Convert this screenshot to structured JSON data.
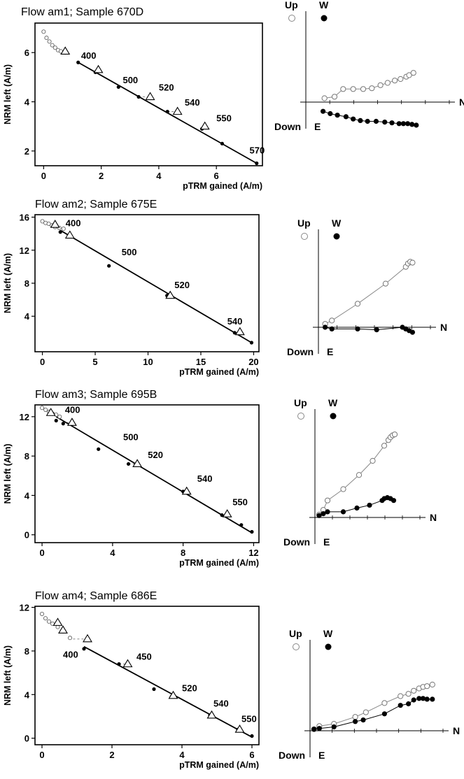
{
  "chart_data": [
    {
      "type": "scatter",
      "title": "Flow am1; Sample 670D",
      "xlabel": "pTRM gained (A/m)",
      "ylabel": "NRM left (A/m)",
      "xlim": [
        -0.3,
        7.6
      ],
      "ylim": [
        1.4,
        7.2
      ],
      "xticks": [
        "0",
        "2",
        "4",
        "6"
      ],
      "yticks": [
        "2",
        "4",
        "6"
      ],
      "points_low": [
        [
          0,
          6.85
        ],
        [
          0.1,
          6.6
        ],
        [
          0.2,
          6.45
        ],
        [
          0.3,
          6.3
        ],
        [
          0.4,
          6.2
        ],
        [
          0.5,
          6.1
        ],
        [
          0.6,
          6.05
        ],
        [
          0.75,
          6.0
        ]
      ],
      "points_fit": [
        [
          1.2,
          5.6
        ],
        [
          1.8,
          5.2
        ],
        [
          2.6,
          4.6
        ],
        [
          3.3,
          4.2
        ],
        [
          4.3,
          3.6
        ],
        [
          5.5,
          2.9
        ],
        [
          6.2,
          2.3
        ],
        [
          7.4,
          1.5
        ]
      ],
      "checks": [
        [
          0.75,
          6.05
        ],
        [
          1.9,
          5.3
        ],
        [
          3.7,
          4.2
        ],
        [
          4.65,
          3.6
        ],
        [
          5.6,
          3.0
        ]
      ],
      "fit_line": [
        [
          1.2,
          5.6
        ],
        [
          7.4,
          1.5
        ]
      ],
      "temps": [
        {
          "label": "400",
          "x": 1.3,
          "y": 5.75
        },
        {
          "label": "500",
          "x": 2.75,
          "y": 4.75
        },
        {
          "label": "520",
          "x": 4.0,
          "y": 4.45
        },
        {
          "label": "540",
          "x": 4.9,
          "y": 3.85
        },
        {
          "label": "550",
          "x": 6.0,
          "y": 3.2
        },
        {
          "label": "570",
          "x": 7.15,
          "y": 1.9
        }
      ],
      "zijderveld": {
        "labels": {
          "up": "Up",
          "w": "W",
          "down": "Down",
          "e": "E",
          "n": "N"
        },
        "horizontal": [
          [
            0.12,
            -0.12
          ],
          [
            0.17,
            -0.15
          ],
          [
            0.22,
            -0.17
          ],
          [
            0.28,
            -0.19
          ],
          [
            0.33,
            -0.22
          ],
          [
            0.38,
            -0.24
          ],
          [
            0.43,
            -0.25
          ],
          [
            0.49,
            -0.25
          ],
          [
            0.55,
            -0.26
          ],
          [
            0.6,
            -0.27
          ],
          [
            0.65,
            -0.28
          ],
          [
            0.68,
            -0.28
          ],
          [
            0.71,
            -0.28
          ],
          [
            0.74,
            -0.29
          ],
          [
            0.77,
            -0.3
          ]
        ],
        "vertical": [
          [
            0.13,
            0.05
          ],
          [
            0.2,
            0.07
          ],
          [
            0.26,
            0.17
          ],
          [
            0.33,
            0.17
          ],
          [
            0.4,
            0.17
          ],
          [
            0.46,
            0.18
          ],
          [
            0.52,
            0.22
          ],
          [
            0.57,
            0.25
          ],
          [
            0.62,
            0.28
          ],
          [
            0.66,
            0.3
          ],
          [
            0.7,
            0.33
          ],
          [
            0.72,
            0.35
          ],
          [
            0.75,
            0.38
          ]
        ]
      }
    },
    {
      "type": "scatter",
      "title": "Flow am2; Sample 675E",
      "xlabel": "pTRM gained (A/m)",
      "ylabel": "NRM left (A/m)",
      "xlim": [
        -0.7,
        20.5
      ],
      "ylim": [
        -0.3,
        16.3
      ],
      "xticks": [
        "0",
        "5",
        "10",
        "15",
        "20"
      ],
      "yticks": [
        "4",
        "8",
        "12",
        "16"
      ],
      "points_low": [
        [
          0,
          15.5
        ],
        [
          0.3,
          15.3
        ],
        [
          0.6,
          15.2
        ],
        [
          0.9,
          15.0
        ],
        [
          1.2,
          14.8
        ],
        [
          1.6,
          14.7
        ],
        [
          2.0,
          14.6
        ]
      ],
      "points_fit": [
        [
          1.7,
          14.2
        ],
        [
          2.5,
          13.8
        ],
        [
          6.3,
          10.1
        ],
        [
          11.8,
          6.5
        ],
        [
          18.2,
          2.0
        ],
        [
          19.8,
          0.8
        ]
      ],
      "checks": [
        [
          1.2,
          15.1
        ],
        [
          2.6,
          13.8
        ],
        [
          12.1,
          6.5
        ],
        [
          18.7,
          2.1
        ]
      ],
      "fit_line": [
        [
          1.7,
          14.4
        ],
        [
          19.8,
          0.8
        ]
      ],
      "temps": [
        {
          "label": "400",
          "x": 2.2,
          "y": 14.9
        },
        {
          "label": "500",
          "x": 7.5,
          "y": 11.4
        },
        {
          "label": "520",
          "x": 12.5,
          "y": 7.4
        },
        {
          "label": "540",
          "x": 17.5,
          "y": 3.0
        }
      ],
      "zijderveld": {
        "labels": {
          "up": "Up",
          "w": "W",
          "down": "Down",
          "e": "E",
          "n": "N"
        },
        "horizontal": [
          [
            0.06,
            0.0
          ],
          [
            0.12,
            -0.02
          ],
          [
            0.35,
            -0.02
          ],
          [
            0.52,
            -0.03
          ],
          [
            0.75,
            0.0
          ],
          [
            0.78,
            -0.02
          ],
          [
            0.81,
            -0.04
          ],
          [
            0.84,
            -0.06
          ]
        ],
        "vertical": [
          [
            0.06,
            0.04
          ],
          [
            0.12,
            0.08
          ],
          [
            0.35,
            0.28
          ],
          [
            0.6,
            0.52
          ],
          [
            0.78,
            0.72
          ],
          [
            0.8,
            0.76
          ],
          [
            0.82,
            0.78
          ],
          [
            0.84,
            0.77
          ]
        ]
      }
    },
    {
      "type": "scatter",
      "title": "Flow am3; Sample 695B",
      "xlabel": "pTRM gained (A/m)",
      "ylabel": "NRM left (A/m)",
      "xlim": [
        -0.4,
        12.3
      ],
      "ylim": [
        -0.8,
        13.2
      ],
      "xticks": [
        "0",
        "4",
        "8",
        "12"
      ],
      "yticks": [
        "0",
        "4",
        "8",
        "12"
      ],
      "points_low": [
        [
          0,
          12.9
        ],
        [
          0.2,
          12.7
        ],
        [
          0.4,
          12.5
        ],
        [
          0.6,
          12.3
        ],
        [
          0.8,
          12.2
        ],
        [
          1.0,
          12.0
        ]
      ],
      "points_fit": [
        [
          0.8,
          11.6
        ],
        [
          1.2,
          11.3
        ],
        [
          3.2,
          8.7
        ],
        [
          4.9,
          7.2
        ],
        [
          8.0,
          4.4
        ],
        [
          10.2,
          2.0
        ],
        [
          11.3,
          1.0
        ],
        [
          11.9,
          0.3
        ]
      ],
      "checks": [
        [
          0.5,
          12.4
        ],
        [
          1.7,
          11.4
        ],
        [
          5.4,
          7.2
        ],
        [
          8.2,
          4.4
        ],
        [
          10.5,
          2.1
        ]
      ],
      "fit_line": [
        [
          0.8,
          12.0
        ],
        [
          11.9,
          0.2
        ]
      ],
      "temps": [
        {
          "label": "400",
          "x": 1.3,
          "y": 12.4
        },
        {
          "label": "500",
          "x": 4.6,
          "y": 9.6
        },
        {
          "label": "520",
          "x": 6.0,
          "y": 7.8
        },
        {
          "label": "540",
          "x": 8.8,
          "y": 5.4
        },
        {
          "label": "550",
          "x": 10.8,
          "y": 3.0
        }
      ],
      "zijderveld": {
        "labels": {
          "up": "Up",
          "w": "W",
          "down": "Down",
          "e": "E",
          "n": "N"
        },
        "horizontal": [
          [
            0.04,
            0.02
          ],
          [
            0.08,
            0.04
          ],
          [
            0.12,
            0.06
          ],
          [
            0.27,
            0.06
          ],
          [
            0.4,
            0.1
          ],
          [
            0.52,
            0.13
          ],
          [
            0.64,
            0.18
          ],
          [
            0.66,
            0.2
          ],
          [
            0.69,
            0.21
          ],
          [
            0.72,
            0.2
          ],
          [
            0.75,
            0.18
          ]
        ],
        "vertical": [
          [
            0.04,
            0.03
          ],
          [
            0.08,
            0.08
          ],
          [
            0.12,
            0.18
          ],
          [
            0.27,
            0.3
          ],
          [
            0.42,
            0.45
          ],
          [
            0.55,
            0.6
          ],
          [
            0.66,
            0.76
          ],
          [
            0.7,
            0.82
          ],
          [
            0.72,
            0.85
          ],
          [
            0.74,
            0.87
          ],
          [
            0.76,
            0.88
          ]
        ]
      }
    },
    {
      "type": "scatter",
      "title": "Flow am4; Sample 686E",
      "xlabel": "pTRM gained (A/m)",
      "ylabel": "NRM left (A/m)",
      "xlim": [
        -0.2,
        6.2
      ],
      "ylim": [
        -0.6,
        12.1
      ],
      "xticks": [
        "0",
        "2",
        "4",
        "6"
      ],
      "yticks": [
        "0",
        "4",
        "8",
        "12"
      ],
      "points_low": [
        [
          0,
          11.4
        ],
        [
          0.1,
          11.0
        ],
        [
          0.2,
          10.7
        ],
        [
          0.3,
          10.5
        ],
        [
          0.45,
          10.2
        ],
        [
          0.6,
          9.8
        ],
        [
          0.8,
          9.2
        ]
      ],
      "points_fit": [
        [
          1.2,
          8.2
        ],
        [
          2.2,
          6.8
        ],
        [
          3.2,
          4.5
        ],
        [
          3.7,
          3.8
        ],
        [
          4.8,
          2.1
        ],
        [
          5.6,
          0.8
        ],
        [
          6.0,
          0.2
        ]
      ],
      "checks": [
        [
          0.45,
          10.6
        ],
        [
          0.6,
          9.9
        ],
        [
          1.3,
          9.1
        ],
        [
          2.45,
          6.8
        ],
        [
          3.75,
          3.9
        ],
        [
          4.85,
          2.1
        ],
        [
          5.65,
          0.8
        ]
      ],
      "fit_line": [
        [
          1.2,
          8.4
        ],
        [
          6.0,
          0.1
        ]
      ],
      "temps": [
        {
          "label": "400",
          "x": 0.6,
          "y": 7.4
        },
        {
          "label": "450",
          "x": 2.7,
          "y": 7.2
        },
        {
          "label": "520",
          "x": 4.0,
          "y": 4.3
        },
        {
          "label": "540",
          "x": 4.9,
          "y": 2.9
        },
        {
          "label": "550",
          "x": 5.7,
          "y": 1.5
        }
      ],
      "zijderveld": {
        "labels": {
          "up": "Up",
          "w": "W",
          "down": "Down",
          "e": "E",
          "n": "N"
        },
        "horizontal": [
          [
            0.03,
            0.02
          ],
          [
            0.07,
            0.03
          ],
          [
            0.18,
            0.05
          ],
          [
            0.34,
            0.12
          ],
          [
            0.4,
            0.14
          ],
          [
            0.56,
            0.22
          ],
          [
            0.68,
            0.33
          ],
          [
            0.74,
            0.35
          ],
          [
            0.78,
            0.4
          ],
          [
            0.82,
            0.42
          ],
          [
            0.85,
            0.42
          ],
          [
            0.88,
            0.41
          ],
          [
            0.92,
            0.41
          ]
        ],
        "vertical": [
          [
            0.03,
            0.02
          ],
          [
            0.07,
            0.06
          ],
          [
            0.18,
            0.09
          ],
          [
            0.34,
            0.18
          ],
          [
            0.42,
            0.24
          ],
          [
            0.56,
            0.36
          ],
          [
            0.68,
            0.45
          ],
          [
            0.74,
            0.48
          ],
          [
            0.78,
            0.52
          ],
          [
            0.82,
            0.55
          ],
          [
            0.85,
            0.57
          ],
          [
            0.88,
            0.58
          ],
          [
            0.92,
            0.6
          ]
        ]
      }
    }
  ]
}
